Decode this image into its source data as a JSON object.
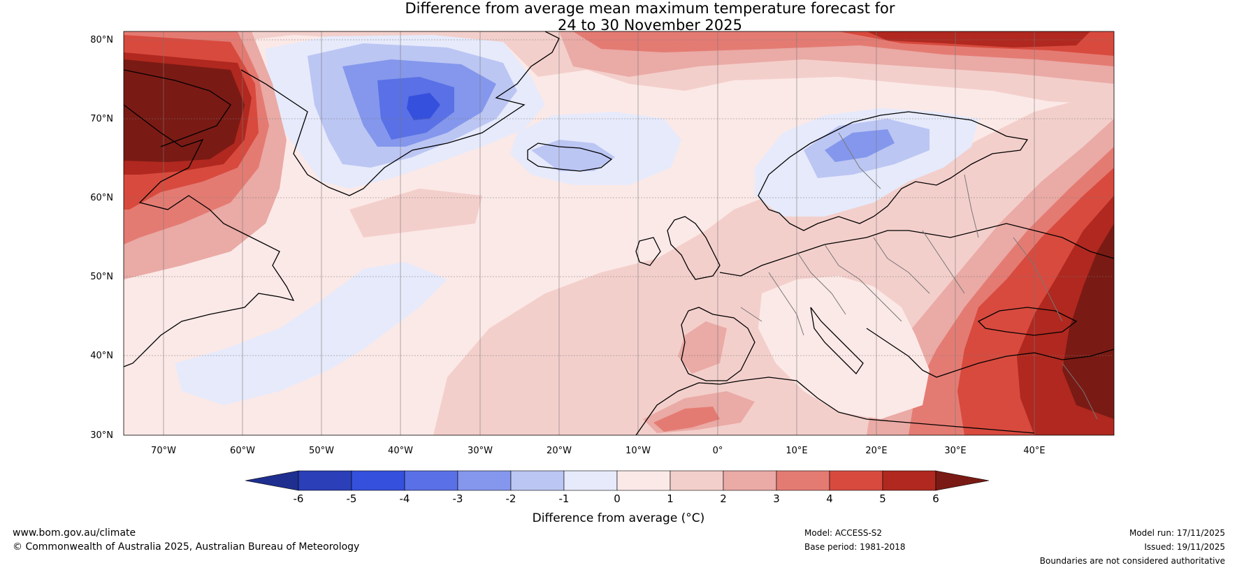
{
  "title": {
    "line1": "Difference from average mean maximum temperature forecast for",
    "line2": "24 to 30 November 2025"
  },
  "map": {
    "lat_ticks": [
      "80°N",
      "70°N",
      "60°N",
      "50°N",
      "40°N",
      "30°N"
    ],
    "lon_ticks": [
      "70°W",
      "60°W",
      "50°W",
      "40°W",
      "30°W",
      "20°W",
      "10°W",
      "0°",
      "10°E",
      "20°E",
      "30°E",
      "40°E"
    ],
    "lon_range": [
      -75,
      50
    ],
    "lat_range": [
      30,
      81
    ]
  },
  "colorbar": {
    "levels": [
      "-6",
      "-5",
      "-4",
      "-3",
      "-2",
      "-1",
      "0",
      "1",
      "2",
      "3",
      "4",
      "5",
      "6"
    ],
    "colors": [
      "#1e2f8f",
      "#2a3fb8",
      "#3550dc",
      "#5a70e6",
      "#8497ec",
      "#bcc6f3",
      "#e6eafb",
      "#fbe9e7",
      "#f3cfcb",
      "#eaaaa5",
      "#e47b73",
      "#d84a3e",
      "#b0281f",
      "#7a1a14"
    ],
    "label": "Difference from average (°C)"
  },
  "footer": {
    "website": "www.bom.gov.au/climate",
    "copyright": "© Commonwealth of Australia 2025, Australian Bureau of Meteorology",
    "model": "Model: ACCESS-S2",
    "base_period": "Base period: 1981-2018",
    "model_run": "Model run: 17/11/2025",
    "issued": "Issued: 19/11/2025",
    "disclaimer": "Boundaries are not considered authoritative"
  }
}
